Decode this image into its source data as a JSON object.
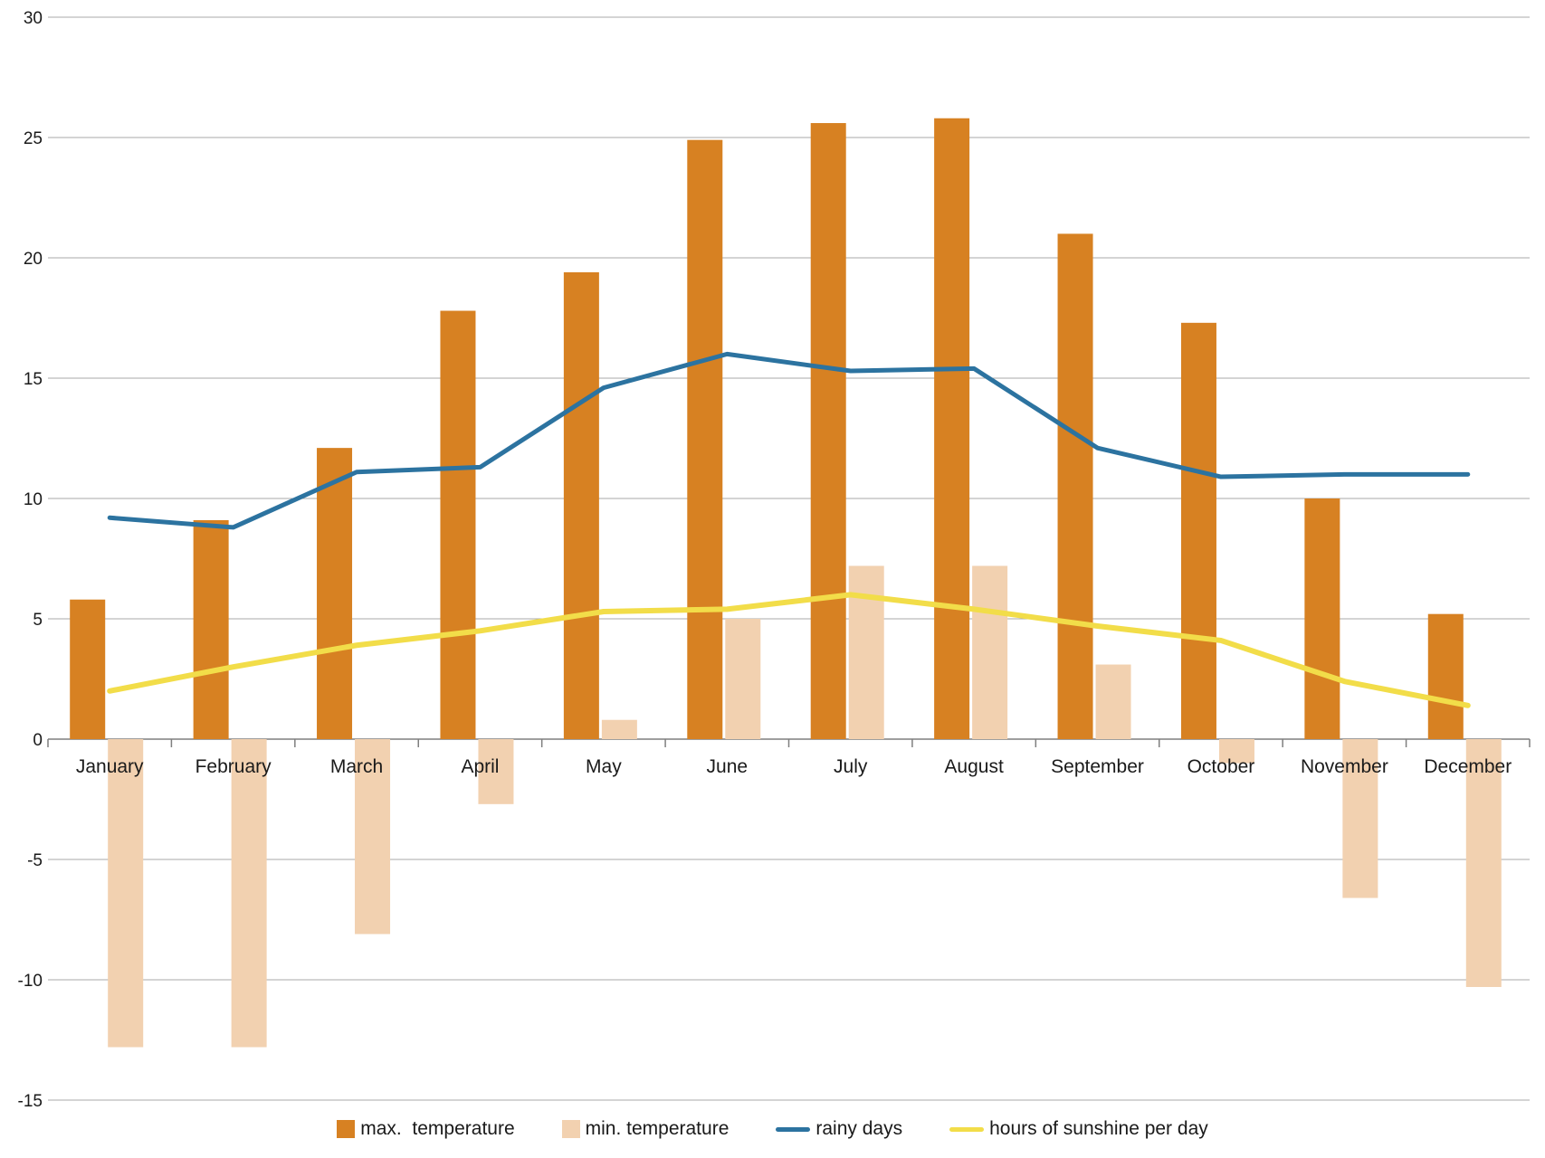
{
  "chart_data": {
    "type": "bar",
    "subtype": "combo-bar-line",
    "title": "",
    "xlabel": "",
    "ylabel": "",
    "categories": [
      "January",
      "February",
      "March",
      "April",
      "May",
      "June",
      "July",
      "August",
      "September",
      "October",
      "November",
      "December"
    ],
    "series": [
      {
        "name": "max.  temperature",
        "type": "bar",
        "color": "#D78122",
        "values": [
          5.8,
          9.1,
          12.1,
          17.8,
          19.4,
          24.9,
          25.6,
          25.8,
          21.0,
          17.3,
          10.0,
          5.2
        ]
      },
      {
        "name": "min. temperature",
        "type": "bar",
        "color": "#F2D1B0",
        "values": [
          -12.8,
          -12.8,
          -8.1,
          -2.7,
          0.8,
          5.0,
          7.2,
          7.2,
          3.1,
          -1.0,
          -6.6,
          -10.3
        ]
      },
      {
        "name": "rainy days",
        "type": "line",
        "color": "#2C73A0",
        "width": 5,
        "values": [
          9.2,
          8.8,
          11.1,
          11.3,
          14.6,
          16.0,
          15.3,
          15.4,
          12.1,
          10.9,
          11.0,
          11.0
        ]
      },
      {
        "name": "hours of sunshine per day",
        "type": "line",
        "color": "#F2DD49",
        "width": 6,
        "values": [
          2.0,
          3.0,
          3.9,
          4.5,
          5.3,
          5.4,
          6.0,
          5.4,
          4.7,
          4.1,
          2.4,
          1.4
        ]
      }
    ],
    "axis": {
      "ymin": -15,
      "ymax": 30,
      "step": 5
    },
    "y_ticks": [
      30,
      25,
      20,
      15,
      10,
      5,
      0,
      -5,
      -10,
      -15
    ],
    "grid": true,
    "legend_position": "bottom",
    "colors": {
      "grid": "#A9A9A9",
      "axis": "#7F7F7F",
      "text": "#1A1A1A"
    }
  }
}
